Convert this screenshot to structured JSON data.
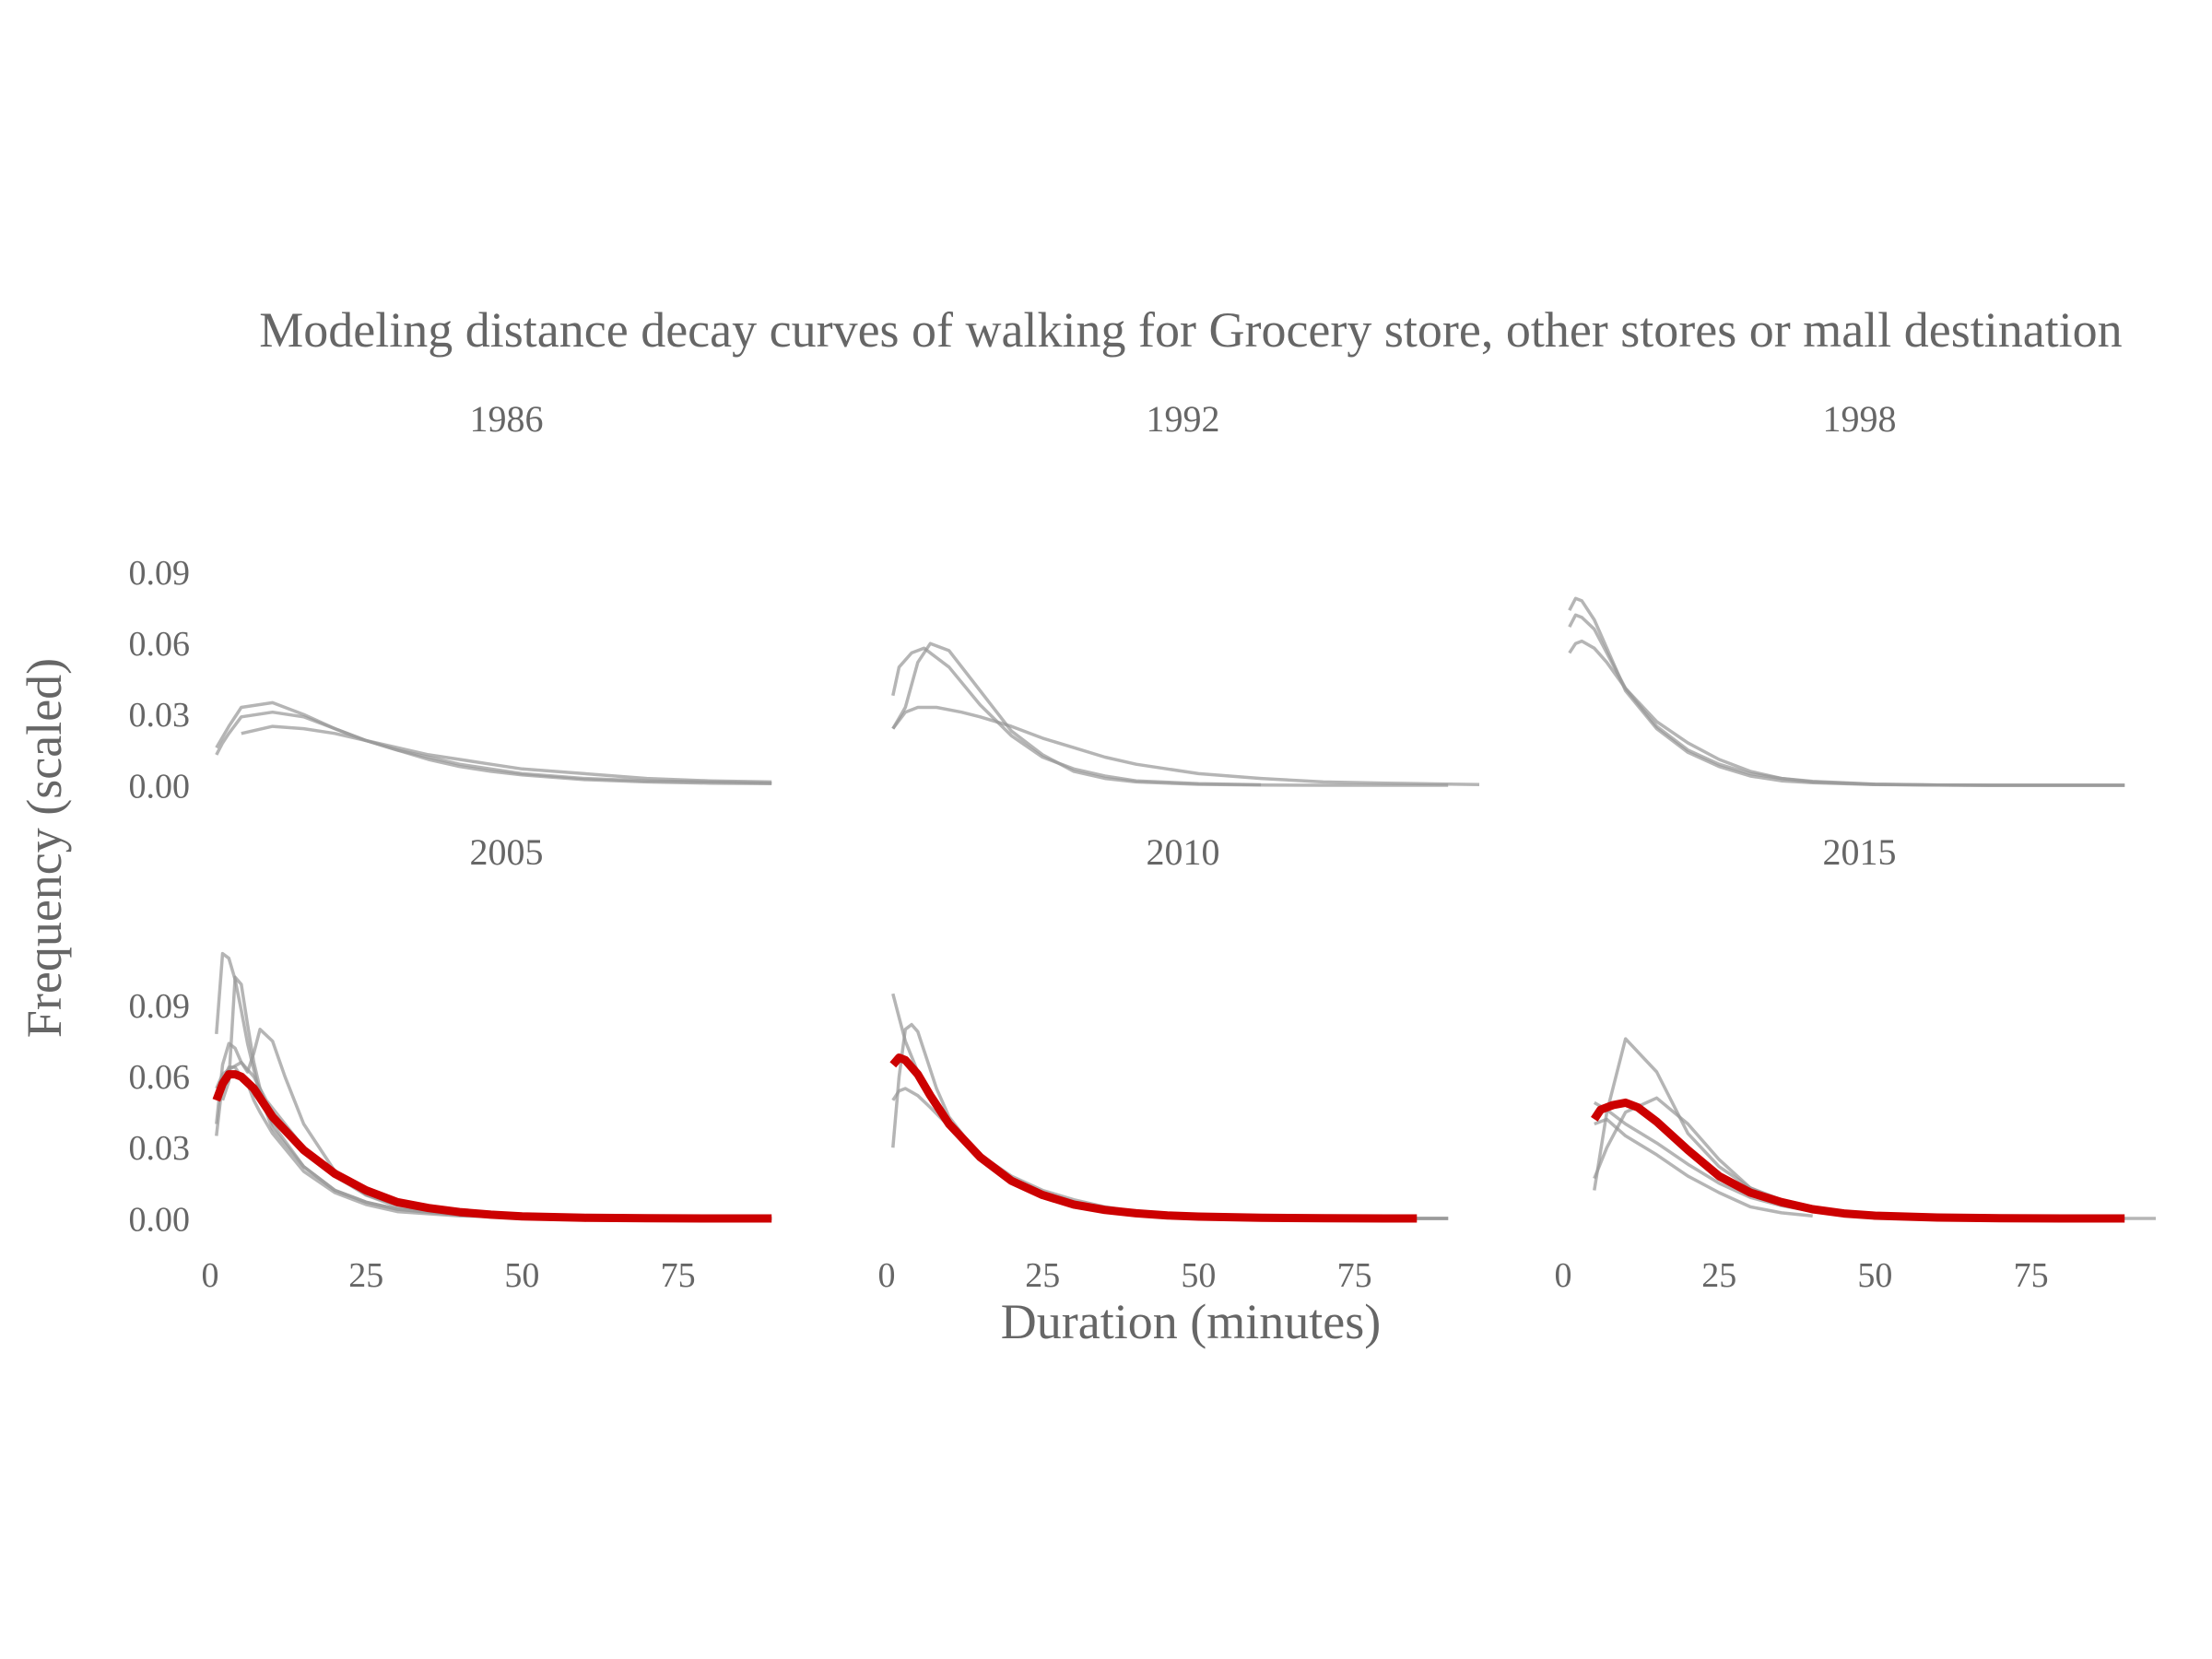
{
  "chart_data": {
    "type": "line",
    "title": "Modeling distance decay curves of walking for Grocery store, other stores or mall destination",
    "xlabel": "Duration (minutes)",
    "ylabel": "Frequency (scaled)",
    "xlim": [
      0,
      95
    ],
    "ylim": [
      -0.003,
      0.113
    ],
    "x_ticks": [
      0,
      25,
      50,
      75
    ],
    "x_tick_labels": [
      "0",
      "25",
      "50",
      "75"
    ],
    "y_ticks": [
      0,
      0.03,
      0.06,
      0.09
    ],
    "y_tick_labels": [
      "0.00",
      "0.03",
      "0.06",
      "0.09"
    ],
    "grid": false,
    "legend": "none",
    "colors": {
      "candidate": "#999999",
      "best_fit": "#cc0000",
      "text": "#666666"
    },
    "panels": [
      {
        "label": "1986",
        "series": [
          {
            "x": [
              1,
              2,
              3,
              5,
              10,
              15,
              20,
              25,
              30,
              35,
              40,
              45,
              50,
              60,
              70,
              80,
              90
            ],
            "y": [
              0.013,
              0.018,
              0.022,
              0.029,
              0.031,
              0.029,
              0.024,
              0.019,
              0.015,
              0.012,
              0.009,
              0.007,
              0.005,
              0.003,
              0.002,
              0.0015,
              0.001
            ]
          },
          {
            "x": [
              1,
              3,
              5,
              10,
              15,
              20,
              25,
              30,
              35,
              40,
              45,
              50,
              60,
              70,
              80,
              90
            ],
            "y": [
              0.016,
              0.025,
              0.033,
              0.035,
              0.03,
              0.024,
              0.019,
              0.015,
              0.011,
              0.008,
              0.006,
              0.0045,
              0.0025,
              0.0015,
              0.001,
              0.0008
            ]
          },
          {
            "x": [
              5,
              10,
              15,
              20,
              25,
              30,
              35,
              40,
              45,
              50,
              60,
              70,
              80,
              90
            ],
            "y": [
              0.022,
              0.025,
              0.024,
              0.022,
              0.019,
              0.016,
              0.013,
              0.011,
              0.009,
              0.007,
              0.005,
              0.003,
              0.002,
              0.0015
            ]
          }
        ]
      },
      {
        "label": "1992",
        "series": [
          {
            "x": [
              1,
              2,
              4,
              6,
              10,
              15,
              20,
              25,
              30,
              35,
              40,
              50,
              60
            ],
            "y": [
              0.038,
              0.05,
              0.056,
              0.058,
              0.05,
              0.034,
              0.021,
              0.012,
              0.007,
              0.004,
              0.002,
              0.0008,
              0.0003
            ]
          },
          {
            "x": [
              1,
              3,
              5,
              7,
              10,
              15,
              20,
              25,
              30,
              35,
              40,
              50,
              60,
              70,
              80,
              90
            ],
            "y": [
              0.024,
              0.033,
              0.052,
              0.06,
              0.057,
              0.04,
              0.023,
              0.013,
              0.006,
              0.003,
              0.0015,
              0.0005,
              0.0002,
              0.0001,
              0.0001,
              0.0001
            ]
          },
          {
            "x": [
              1,
              3,
              5,
              8,
              12,
              15,
              20,
              25,
              30,
              35,
              40,
              45,
              50,
              60,
              70,
              80,
              90,
              95
            ],
            "y": [
              0.024,
              0.031,
              0.033,
              0.033,
              0.031,
              0.029,
              0.025,
              0.02,
              0.016,
              0.012,
              0.009,
              0.007,
              0.005,
              0.003,
              0.0015,
              0.001,
              0.0006,
              0.0004
            ]
          }
        ]
      },
      {
        "label": "1998",
        "series": [
          {
            "x": [
              1,
              2,
              3,
              5,
              7,
              10,
              15,
              20,
              25,
              30,
              35,
              40,
              50,
              60,
              70,
              80,
              90
            ],
            "y": [
              0.074,
              0.079,
              0.078,
              0.07,
              0.058,
              0.04,
              0.024,
              0.014,
              0.008,
              0.004,
              0.002,
              0.0012,
              0.0004,
              0.0002,
              0.0001,
              0.0001,
              0.0001
            ]
          },
          {
            "x": [
              1,
              2,
              3,
              5,
              7,
              10,
              15,
              20,
              25,
              30,
              35,
              40,
              50,
              60,
              70,
              80,
              90
            ],
            "y": [
              0.067,
              0.072,
              0.071,
              0.066,
              0.056,
              0.041,
              0.025,
              0.015,
              0.009,
              0.005,
              0.003,
              0.0015,
              0.0005,
              0.0002,
              0.0001,
              0.0001,
              0.0001
            ]
          },
          {
            "x": [
              1,
              2,
              3,
              5,
              7,
              10,
              15,
              20,
              25,
              30,
              35,
              40,
              50,
              60,
              70,
              80,
              90
            ],
            "y": [
              0.056,
              0.06,
              0.061,
              0.058,
              0.052,
              0.041,
              0.027,
              0.018,
              0.011,
              0.006,
              0.003,
              0.0018,
              0.0006,
              0.0002,
              0.0001,
              0.0001,
              0.0001
            ]
          }
        ]
      },
      {
        "label": "2005",
        "series": [
          {
            "x": [
              1,
              2,
              3,
              4,
              5,
              6,
              8,
              10,
              15,
              20,
              25,
              30,
              40,
              50,
              60,
              70,
              80,
              90
            ],
            "y": [
              0.078,
              0.112,
              0.11,
              0.101,
              0.088,
              0.074,
              0.052,
              0.038,
              0.022,
              0.012,
              0.007,
              0.004,
              0.0015,
              0.0005,
              0.0002,
              0.0001,
              0.0001,
              0.0001
            ]
          },
          {
            "x": [
              1,
              2,
              3,
              4,
              5,
              6,
              7,
              8,
              10,
              15,
              20,
              25,
              30,
              40,
              50,
              60,
              70,
              80,
              90
            ],
            "y": [
              0.035,
              0.058,
              0.064,
              0.064,
              0.06,
              0.057,
              0.05,
              0.045,
              0.036,
              0.02,
              0.011,
              0.006,
              0.003,
              0.0012,
              0.0005,
              0.0002,
              0.0001,
              0.0001,
              0.0001
            ]
          },
          {
            "x": [
              2,
              3,
              4,
              5,
              6,
              7,
              8,
              10,
              15,
              20,
              25,
              30,
              40,
              50,
              60,
              70,
              80,
              90
            ],
            "y": [
              0.05,
              0.058,
              0.102,
              0.099,
              0.082,
              0.066,
              0.055,
              0.04,
              0.022,
              0.012,
              0.007,
              0.004,
              0.0015,
              0.0005,
              0.0002,
              0.0001,
              0.0001,
              0.0001
            ]
          },
          {
            "x": [
              1,
              2,
              3,
              4,
              5,
              6,
              7,
              8,
              10,
              12,
              15,
              20,
              25,
              30,
              40,
              50,
              60,
              70,
              80,
              90
            ],
            "y": [
              0.04,
              0.065,
              0.074,
              0.072,
              0.066,
              0.062,
              0.07,
              0.08,
              0.075,
              0.06,
              0.04,
              0.02,
              0.01,
              0.005,
              0.0018,
              0.0006,
              0.0002,
              0.0001,
              0.0001,
              0.0001
            ]
          },
          {
            "x": [
              1,
              2,
              3,
              5,
              7,
              9,
              12,
              15,
              20,
              25,
              30,
              40,
              50,
              60,
              70,
              80,
              90
            ],
            "y": [
              0.055,
              0.061,
              0.063,
              0.066,
              0.06,
              0.05,
              0.04,
              0.03,
              0.018,
              0.01,
              0.006,
              0.002,
              0.0008,
              0.0003,
              0.0001,
              0.0001,
              0.0001
            ]
          }
        ],
        "best_fit": {
          "x": [
            1,
            2,
            3,
            4,
            5,
            7,
            10,
            15,
            20,
            25,
            30,
            35,
            40,
            45,
            50,
            60,
            70,
            80,
            90
          ],
          "y": [
            0.05,
            0.057,
            0.061,
            0.061,
            0.06,
            0.055,
            0.043,
            0.029,
            0.019,
            0.012,
            0.007,
            0.0045,
            0.0028,
            0.0017,
            0.001,
            0.0004,
            0.0002,
            0.0001,
            0.0001
          ]
        }
      },
      {
        "label": "2010",
        "series": [
          {
            "x": [
              1,
              2,
              3,
              5,
              7,
              10,
              15,
              20,
              25,
              30,
              35,
              40,
              50,
              60,
              70,
              80,
              90
            ],
            "y": [
              0.095,
              0.085,
              0.075,
              0.062,
              0.052,
              0.04,
              0.026,
              0.016,
              0.01,
              0.006,
              0.0035,
              0.002,
              0.0007,
              0.0003,
              0.0001,
              0.0001,
              0.0001
            ]
          },
          {
            "x": [
              1,
              2,
              3,
              4,
              5,
              6,
              8,
              10,
              15,
              20,
              25,
              30,
              40,
              50,
              60,
              70,
              80,
              90
            ],
            "y": [
              0.03,
              0.06,
              0.08,
              0.082,
              0.079,
              0.071,
              0.055,
              0.043,
              0.026,
              0.016,
              0.01,
              0.006,
              0.002,
              0.0008,
              0.0003,
              0.0001,
              0.0001,
              0.0001
            ]
          },
          {
            "x": [
              1,
              2,
              3,
              5,
              7,
              10,
              15,
              20,
              25,
              30,
              35,
              40,
              50,
              60,
              70,
              80,
              90
            ],
            "y": [
              0.05,
              0.054,
              0.055,
              0.052,
              0.047,
              0.039,
              0.027,
              0.018,
              0.012,
              0.008,
              0.005,
              0.003,
              0.0012,
              0.0005,
              0.0002,
              0.0001,
              0.0001
            ]
          }
        ],
        "best_fit": {
          "x": [
            1,
            2,
            3,
            5,
            7,
            10,
            15,
            20,
            25,
            30,
            35,
            40,
            45,
            50,
            60,
            70,
            80,
            85
          ],
          "y": [
            0.065,
            0.068,
            0.067,
            0.061,
            0.052,
            0.04,
            0.026,
            0.016,
            0.01,
            0.006,
            0.0037,
            0.0023,
            0.0014,
            0.0009,
            0.0004,
            0.0002,
            0.0001,
            0.0001
          ]
        }
      },
      {
        "label": "2015",
        "series": [
          {
            "x": [
              5,
              7,
              10,
              15,
              20,
              25,
              30,
              35,
              40,
              45,
              50,
              60,
              70,
              80,
              90,
              95
            ],
            "y": [
              0.012,
              0.045,
              0.076,
              0.062,
              0.036,
              0.022,
              0.013,
              0.008,
              0.005,
              0.003,
              0.0018,
              0.0007,
              0.0003,
              0.0001,
              0.0001,
              0.0001
            ]
          },
          {
            "x": [
              5,
              7,
              10,
              15,
              20,
              25,
              30,
              35,
              40,
              45,
              50,
              60,
              70,
              80,
              90
            ],
            "y": [
              0.017,
              0.03,
              0.045,
              0.051,
              0.04,
              0.025,
              0.013,
              0.007,
              0.0035,
              0.002,
              0.001,
              0.0004,
              0.0002,
              0.0001,
              0.0001
            ]
          },
          {
            "x": [
              5,
              7,
              10,
              15,
              20,
              25,
              30,
              35,
              40
            ],
            "y": [
              0.04,
              0.042,
              0.035,
              0.027,
              0.018,
              0.011,
              0.005,
              0.0025,
              0.0012
            ]
          },
          {
            "x": [
              5,
              7,
              10,
              15,
              20,
              25,
              30,
              35,
              40,
              45,
              50,
              60,
              70,
              80,
              90
            ],
            "y": [
              0.049,
              0.046,
              0.04,
              0.032,
              0.023,
              0.015,
              0.009,
              0.0055,
              0.0032,
              0.0018,
              0.001,
              0.0004,
              0.0002,
              0.0001,
              0.0001
            ]
          }
        ],
        "best_fit": {
          "x": [
            5,
            6,
            8,
            10,
            12,
            15,
            20,
            25,
            30,
            35,
            40,
            45,
            50,
            60,
            70,
            80,
            90
          ],
          "y": [
            0.042,
            0.046,
            0.048,
            0.049,
            0.047,
            0.041,
            0.029,
            0.018,
            0.011,
            0.007,
            0.004,
            0.0022,
            0.0013,
            0.0005,
            0.0002,
            0.0001,
            0.0001
          ]
        }
      }
    ]
  }
}
